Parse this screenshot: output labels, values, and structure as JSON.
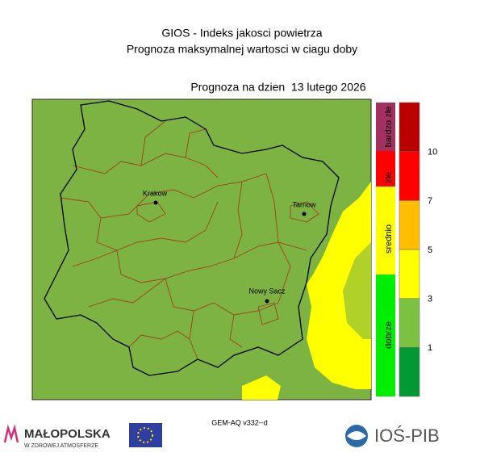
{
  "header": {
    "title": "GIOS - Indeks jakosci powietrza",
    "subtitle": "Prognoza maksymalnej wartosci w ciagu doby",
    "date": "Prognoza na dzien  13 lutego 2026"
  },
  "map": {
    "cities": [
      "Krakow",
      "Tarnow",
      "Nowy Sacz"
    ]
  },
  "legend": {
    "categories": [
      "bardzo złe",
      "złe",
      "srednio",
      "dobrze"
    ]
  },
  "scale": {
    "colors": [
      "#009933",
      "#7cc142",
      "#ffff00",
      "#ffbf00",
      "#ff0000",
      "#bb0000"
    ],
    "labels": [
      1,
      3,
      5,
      7,
      10
    ]
  },
  "footer": {
    "model": "GEM-AQ v332--d",
    "logo_left": "MAŁOPOLSKA",
    "logo_left_sub": "W ZDROWEJ ATMOSFERZE",
    "logo_right": "IOŚ-PIB"
  }
}
